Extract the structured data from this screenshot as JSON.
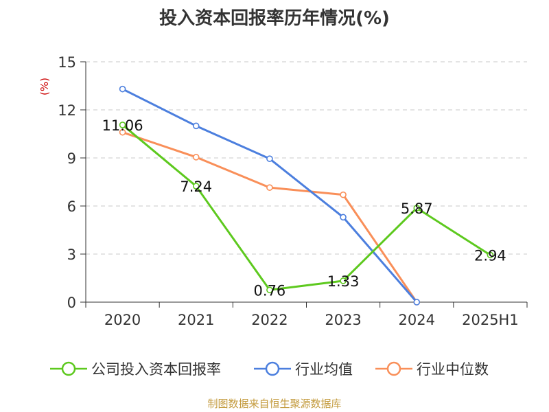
{
  "title": "投入资本回报率历年情况(%)",
  "source": "制图数据来自恒生聚源数据库",
  "colors": {
    "company": "#5dc91e",
    "industry_avg": "#4c7fde",
    "industry_median": "#f98f59",
    "source_text": "#c39a3c",
    "ylabel": "#cc0000",
    "grid": "#c8c8c8",
    "axis": "#333333"
  },
  "chart_data": {
    "type": "line",
    "title": "投入资本回报率历年情况(%)",
    "xlabel": "",
    "ylabel": "(%)",
    "categories": [
      "2020",
      "2021",
      "2022",
      "2023",
      "2024",
      "2025H1"
    ],
    "ylim": [
      0,
      15
    ],
    "yticks": [
      0,
      3,
      6,
      9,
      12,
      15
    ],
    "grid": true,
    "legend_position": "bottom",
    "series": [
      {
        "name": "公司投入资本回报率",
        "key": "company",
        "values": [
          11.06,
          7.24,
          0.76,
          1.33,
          5.87,
          2.94
        ],
        "data_labels": [
          "11.06",
          "7.24",
          "0.76",
          "1.33",
          "5.87",
          "2.94"
        ]
      },
      {
        "name": "行业均值",
        "key": "industry_avg",
        "values": [
          13.3,
          11.0,
          8.95,
          5.3,
          0.0,
          null
        ]
      },
      {
        "name": "行业中位数",
        "key": "industry_median",
        "values": [
          10.6,
          9.05,
          7.15,
          6.7,
          0.0,
          null
        ]
      }
    ]
  }
}
